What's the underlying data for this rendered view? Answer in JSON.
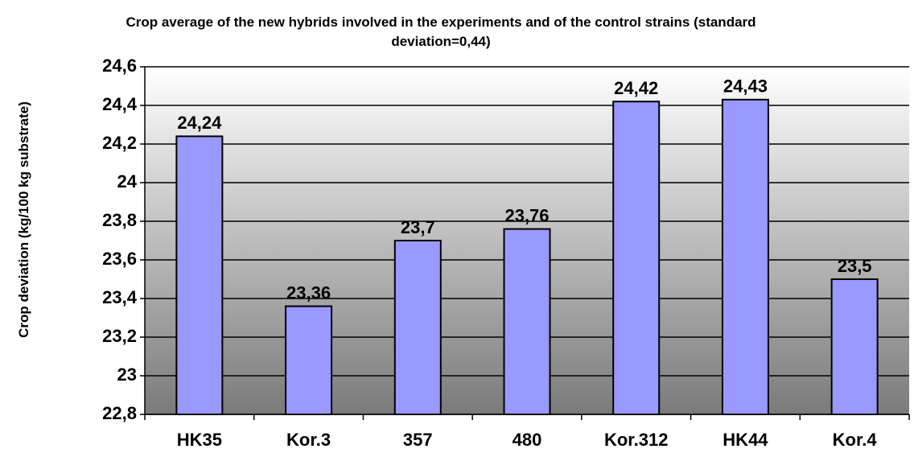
{
  "chart_data": {
    "type": "bar",
    "title": "Crop average of the new hybrids involved in the experiments and of the control strains (standard deviation=0,44)",
    "y_label": "Crop deviation (kg/100 kg substrate)",
    "categories": [
      "HK35",
      "Kor.3",
      "357",
      "480",
      "Kor.312",
      "HK44",
      "Kor.4"
    ],
    "values": [
      24.24,
      23.36,
      23.7,
      23.76,
      24.42,
      24.43,
      23.5
    ],
    "value_labels": [
      "24,24",
      "23,36",
      "23,7",
      "23,76",
      "24,42",
      "24,43",
      "23,5"
    ],
    "color": "#9999ff",
    "ylim": [
      22.8,
      24.6
    ],
    "yticks": [
      {
        "value": 22.8,
        "label": "22,8"
      },
      23,
      {
        "value": 23.2,
        "label": "23,2"
      },
      {
        "value": 23.4,
        "label": "23,4"
      },
      {
        "value": 23.6,
        "label": "23,6"
      },
      {
        "value": 23.8,
        "label": "23,8"
      },
      24,
      {
        "value": 24.2,
        "label": "24,2"
      },
      {
        "value": 24.4,
        "label": "24,4"
      },
      {
        "value": 24.6,
        "label": "24,6"
      }
    ],
    "grid": true
  }
}
